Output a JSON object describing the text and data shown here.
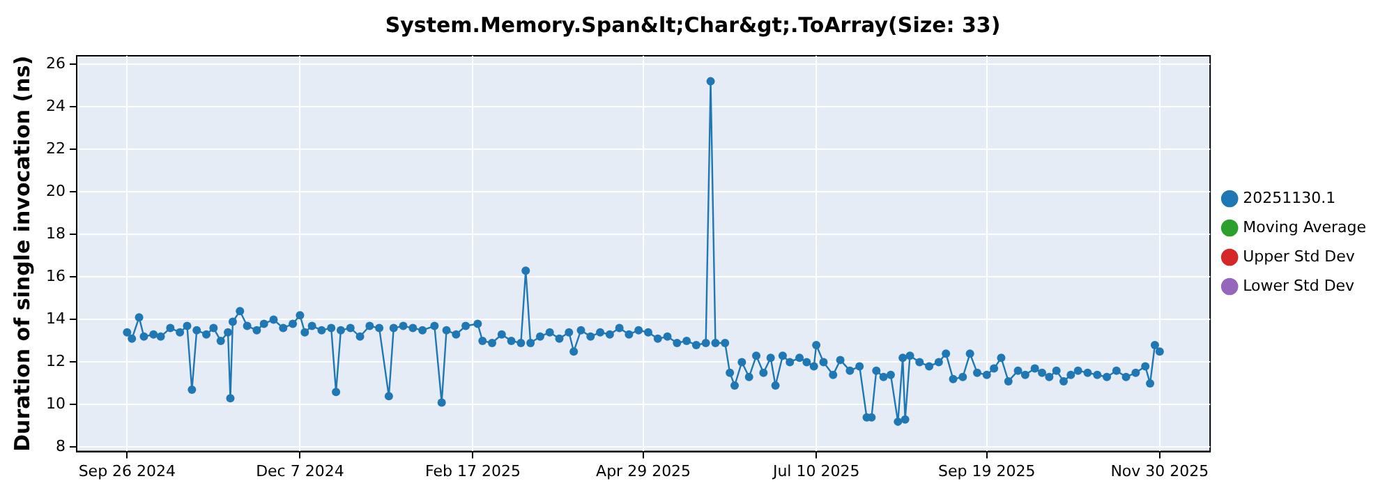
{
  "chart_data": {
    "type": "line",
    "title": "System.Memory.Span&lt;Char&gt;.ToArray(Size: 33)",
    "ylabel": "Duration of single invocation (ns)",
    "x": [
      "2024-09-26",
      "2024-09-28",
      "2024-10-01",
      "2024-10-03",
      "2024-10-07",
      "2024-10-10",
      "2024-10-14",
      "2024-10-18",
      "2024-10-21",
      "2024-10-23",
      "2024-10-25",
      "2024-10-29",
      "2024-11-01",
      "2024-11-04",
      "2024-11-07",
      "2024-11-08",
      "2024-11-09",
      "2024-11-12",
      "2024-11-15",
      "2024-11-19",
      "2024-11-22",
      "2024-11-26",
      "2024-11-30",
      "2024-12-04",
      "2024-12-07",
      "2024-12-09",
      "2024-12-12",
      "2024-12-16",
      "2024-12-20",
      "2024-12-22",
      "2024-12-24",
      "2024-12-28",
      "2025-01-01",
      "2025-01-05",
      "2025-01-09",
      "2025-01-13",
      "2025-01-15",
      "2025-01-19",
      "2025-01-23",
      "2025-01-27",
      "2025-02-01",
      "2025-02-04",
      "2025-02-06",
      "2025-02-10",
      "2025-02-14",
      "2025-02-19",
      "2025-02-21",
      "2025-02-25",
      "2025-03-01",
      "2025-03-05",
      "2025-03-09",
      "2025-03-11",
      "2025-03-13",
      "2025-03-17",
      "2025-03-21",
      "2025-03-25",
      "2025-03-29",
      "2025-03-31",
      "2025-04-03",
      "2025-04-07",
      "2025-04-11",
      "2025-04-15",
      "2025-04-19",
      "2025-04-23",
      "2025-04-27",
      "2025-05-01",
      "2025-05-05",
      "2025-05-09",
      "2025-05-13",
      "2025-05-17",
      "2025-05-21",
      "2025-05-25",
      "2025-05-27",
      "2025-05-29",
      "2025-06-02",
      "2025-06-04",
      "2025-06-06",
      "2025-06-09",
      "2025-06-12",
      "2025-06-15",
      "2025-06-18",
      "2025-06-21",
      "2025-06-23",
      "2025-06-26",
      "2025-06-29",
      "2025-07-03",
      "2025-07-06",
      "2025-07-09",
      "2025-07-10",
      "2025-07-13",
      "2025-07-17",
      "2025-07-20",
      "2025-07-24",
      "2025-07-28",
      "2025-07-31",
      "2025-08-02",
      "2025-08-04",
      "2025-08-07",
      "2025-08-10",
      "2025-08-13",
      "2025-08-15",
      "2025-08-16",
      "2025-08-18",
      "2025-08-22",
      "2025-08-26",
      "2025-08-30",
      "2025-09-02",
      "2025-09-05",
      "2025-09-09",
      "2025-09-12",
      "2025-09-15",
      "2025-09-19",
      "2025-09-22",
      "2025-09-25",
      "2025-09-28",
      "2025-10-02",
      "2025-10-05",
      "2025-10-09",
      "2025-10-12",
      "2025-10-15",
      "2025-10-18",
      "2025-10-21",
      "2025-10-24",
      "2025-10-27",
      "2025-10-31",
      "2025-11-04",
      "2025-11-08",
      "2025-11-12",
      "2025-11-16",
      "2025-11-20",
      "2025-11-24",
      "2025-11-26",
      "2025-11-28",
      "2025-11-30"
    ],
    "series": [
      {
        "name": "20251130.1",
        "color": "#1f77b4",
        "values": [
          13.4,
          13.1,
          14.1,
          13.2,
          13.3,
          13.2,
          13.6,
          13.4,
          13.7,
          10.7,
          13.5,
          13.3,
          13.6,
          13.0,
          13.4,
          10.3,
          13.9,
          14.4,
          13.7,
          13.5,
          13.8,
          14.0,
          13.6,
          13.8,
          14.2,
          13.4,
          13.7,
          13.5,
          13.6,
          10.6,
          13.5,
          13.6,
          13.2,
          13.7,
          13.6,
          10.4,
          13.6,
          13.7,
          13.6,
          13.5,
          13.7,
          10.1,
          13.5,
          13.3,
          13.7,
          13.8,
          13.0,
          12.9,
          13.3,
          13.0,
          12.9,
          16.3,
          12.9,
          13.2,
          13.4,
          13.1,
          13.4,
          12.5,
          13.5,
          13.2,
          13.4,
          13.3,
          13.6,
          13.3,
          13.5,
          13.4,
          13.1,
          13.2,
          12.9,
          13.0,
          12.8,
          12.9,
          25.2,
          12.9,
          12.9,
          11.5,
          10.9,
          12.0,
          11.3,
          12.3,
          11.5,
          12.2,
          10.9,
          12.3,
          12.0,
          12.2,
          12.0,
          11.8,
          12.8,
          12.0,
          11.4,
          12.1,
          11.6,
          11.8,
          9.4,
          9.4,
          11.6,
          11.3,
          11.4,
          9.2,
          12.2,
          9.3,
          12.3,
          12.0,
          11.8,
          12.0,
          12.4,
          11.2,
          11.3,
          12.4,
          11.5,
          11.4,
          11.7,
          12.2,
          11.1,
          11.6,
          11.4,
          11.7,
          11.5,
          11.3,
          11.6,
          11.1,
          11.4,
          11.6,
          11.5,
          11.4,
          11.3,
          11.6,
          11.3,
          11.5,
          11.8,
          11.0,
          12.8,
          12.5
        ]
      },
      {
        "name": "Moving Average",
        "color": "#2ca02c",
        "values": [
          null,
          null,
          null,
          null,
          null,
          null,
          null,
          null,
          null,
          null,
          null,
          null,
          null,
          null,
          null,
          null,
          null,
          null,
          null,
          null,
          null,
          null,
          null,
          null,
          null,
          null,
          null,
          null,
          null,
          null,
          null,
          null,
          null,
          null,
          null,
          null,
          null,
          null,
          null,
          null,
          null,
          null,
          null,
          null,
          null,
          null,
          null,
          null,
          null,
          null,
          null,
          null,
          null,
          null,
          null,
          null,
          null,
          null,
          null,
          null,
          null,
          null,
          null,
          null,
          null,
          null,
          null,
          null,
          null,
          null,
          null,
          null,
          null,
          null,
          null,
          null,
          null,
          null,
          null,
          null,
          null,
          null,
          null,
          null,
          null,
          null,
          null,
          null,
          null,
          null,
          null,
          null,
          null,
          null,
          null,
          null,
          null,
          null,
          null,
          null,
          null,
          null,
          null,
          null,
          null,
          null,
          null,
          null,
          null,
          null,
          null,
          null,
          null,
          null,
          null,
          null,
          null,
          null,
          null,
          null,
          null,
          null,
          null,
          null,
          null,
          null,
          null,
          null,
          null,
          null,
          null,
          null,
          null,
          null
        ]
      },
      {
        "name": "Upper Std Dev",
        "color": "#d62728",
        "values": [
          null,
          null,
          null,
          null,
          null,
          null,
          null,
          null,
          null,
          null,
          null,
          null,
          null,
          null,
          null,
          null,
          null,
          null,
          null,
          null,
          null,
          null,
          null,
          null,
          null,
          null,
          null,
          null,
          null,
          null,
          null,
          null,
          null,
          null,
          null,
          null,
          null,
          null,
          null,
          null,
          null,
          null,
          null,
          null,
          null,
          null,
          null,
          null,
          null,
          null,
          null,
          null,
          null,
          null,
          null,
          null,
          null,
          null,
          null,
          null,
          null,
          null,
          null,
          null,
          null,
          null,
          null,
          null,
          null,
          null,
          null,
          null,
          null,
          null,
          null,
          null,
          null,
          null,
          null,
          null,
          null,
          null,
          null,
          null,
          null,
          null,
          null,
          null,
          null,
          null,
          null,
          null,
          null,
          null,
          null,
          null,
          null,
          null,
          null,
          null,
          null,
          null,
          null,
          null,
          null,
          null,
          null,
          null,
          null,
          null,
          null,
          null,
          null,
          null,
          null,
          null,
          null,
          null,
          null,
          null,
          null,
          null,
          null,
          null,
          null,
          null,
          null,
          null,
          null,
          null,
          null,
          null,
          null,
          null
        ]
      },
      {
        "name": "Lower Std Dev",
        "color": "#9467bd",
        "values": [
          null,
          null,
          null,
          null,
          null,
          null,
          null,
          null,
          null,
          null,
          null,
          null,
          null,
          null,
          null,
          null,
          null,
          null,
          null,
          null,
          null,
          null,
          null,
          null,
          null,
          null,
          null,
          null,
          null,
          null,
          null,
          null,
          null,
          null,
          null,
          null,
          null,
          null,
          null,
          null,
          null,
          null,
          null,
          null,
          null,
          null,
          null,
          null,
          null,
          null,
          null,
          null,
          null,
          null,
          null,
          null,
          null,
          null,
          null,
          null,
          null,
          null,
          null,
          null,
          null,
          null,
          null,
          null,
          null,
          null,
          null,
          null,
          null,
          null,
          null,
          null,
          null,
          null,
          null,
          null,
          null,
          null,
          null,
          null,
          null,
          null,
          null,
          null,
          null,
          null,
          null,
          null,
          null,
          null,
          null,
          null,
          null,
          null,
          null,
          null,
          null,
          null,
          null,
          null,
          null,
          null,
          null,
          null,
          null,
          null,
          null,
          null,
          null,
          null,
          null,
          null,
          null,
          null,
          null,
          null,
          null,
          null,
          null,
          null,
          null,
          null,
          null,
          null,
          null,
          null,
          null,
          null,
          null,
          null
        ]
      }
    ],
    "xlim": [
      "2024-09-05",
      "2025-12-21"
    ],
    "xticks": [
      {
        "value": "2024-09-26",
        "label": "Sep 26 2024"
      },
      {
        "value": "2024-12-07",
        "label": "Dec 7 2024"
      },
      {
        "value": "2025-02-17",
        "label": "Feb 17 2025"
      },
      {
        "value": "2025-04-29",
        "label": "Apr 29 2025"
      },
      {
        "value": "2025-07-10",
        "label": "Jul 10 2025"
      },
      {
        "value": "2025-09-19",
        "label": "Sep 19 2025"
      },
      {
        "value": "2025-11-30",
        "label": "Nov 30 2025"
      }
    ],
    "ylim": [
      7.8,
      26.4
    ],
    "yticks": [
      8,
      10,
      12,
      14,
      16,
      18,
      20,
      22,
      24,
      26
    ],
    "grid": true,
    "legend": "right",
    "marker": "circle",
    "line_style": "solid"
  }
}
